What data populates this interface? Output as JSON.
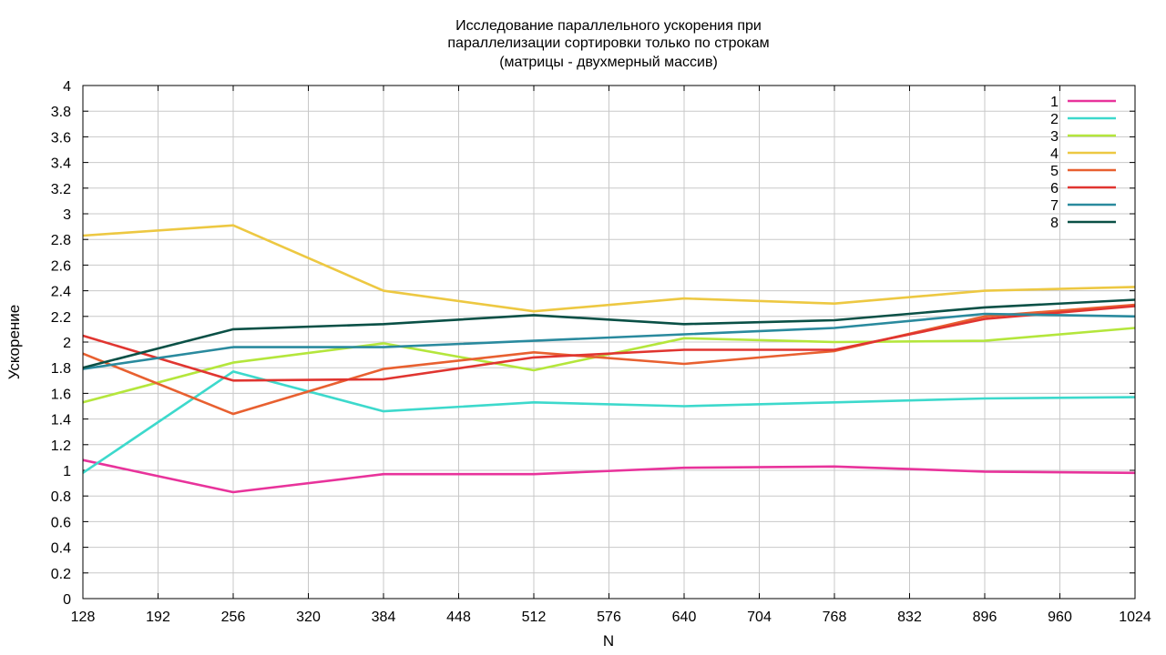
{
  "chart_data": {
    "type": "line",
    "title_lines": [
      "Исследование параллельного ускорения при",
      "параллелизации сортировки только по строкам",
      "(матрицы - двухмерный массив)"
    ],
    "xlabel": "N",
    "ylabel": "Ускорение",
    "xlim": [
      128,
      1024
    ],
    "ylim": [
      0,
      4
    ],
    "xticks": [
      128,
      192,
      256,
      320,
      384,
      448,
      512,
      576,
      640,
      704,
      768,
      832,
      896,
      960,
      1024
    ],
    "yticks": [
      0,
      0.2,
      0.4,
      0.6,
      0.8,
      1,
      1.2,
      1.4,
      1.6,
      1.8,
      2,
      2.2,
      2.4,
      2.6,
      2.8,
      3,
      3.2,
      3.4,
      3.6,
      3.8,
      4
    ],
    "grid": true,
    "legend_position": "top-right",
    "x": [
      128,
      256,
      384,
      512,
      640,
      768,
      896,
      1024
    ],
    "series": [
      {
        "name": "1",
        "color": "#e8339b",
        "values": [
          1.08,
          0.83,
          0.97,
          0.97,
          1.02,
          1.03,
          0.99,
          0.98
        ]
      },
      {
        "name": "2",
        "color": "#3dd9cc",
        "values": [
          0.98,
          1.77,
          1.46,
          1.53,
          1.5,
          1.53,
          1.56,
          1.57
        ]
      },
      {
        "name": "3",
        "color": "#b4e63c",
        "values": [
          1.53,
          1.84,
          1.99,
          1.78,
          2.03,
          2.0,
          2.01,
          2.11
        ]
      },
      {
        "name": "4",
        "color": "#edc842",
        "values": [
          2.83,
          2.91,
          2.4,
          2.24,
          2.34,
          2.3,
          2.4,
          2.43
        ]
      },
      {
        "name": "5",
        "color": "#e86030",
        "values": [
          1.91,
          1.44,
          1.79,
          1.92,
          1.83,
          1.93,
          2.2,
          2.29
        ]
      },
      {
        "name": "6",
        "color": "#e03530",
        "values": [
          2.05,
          1.7,
          1.71,
          1.88,
          1.94,
          1.94,
          2.18,
          2.28
        ]
      },
      {
        "name": "7",
        "color": "#2a8a9e",
        "values": [
          1.79,
          1.96,
          1.96,
          2.01,
          2.06,
          2.11,
          2.22,
          2.2
        ]
      },
      {
        "name": "8",
        "color": "#0a5046",
        "values": [
          1.8,
          2.1,
          2.14,
          2.21,
          2.14,
          2.17,
          2.27,
          2.33
        ]
      }
    ]
  }
}
